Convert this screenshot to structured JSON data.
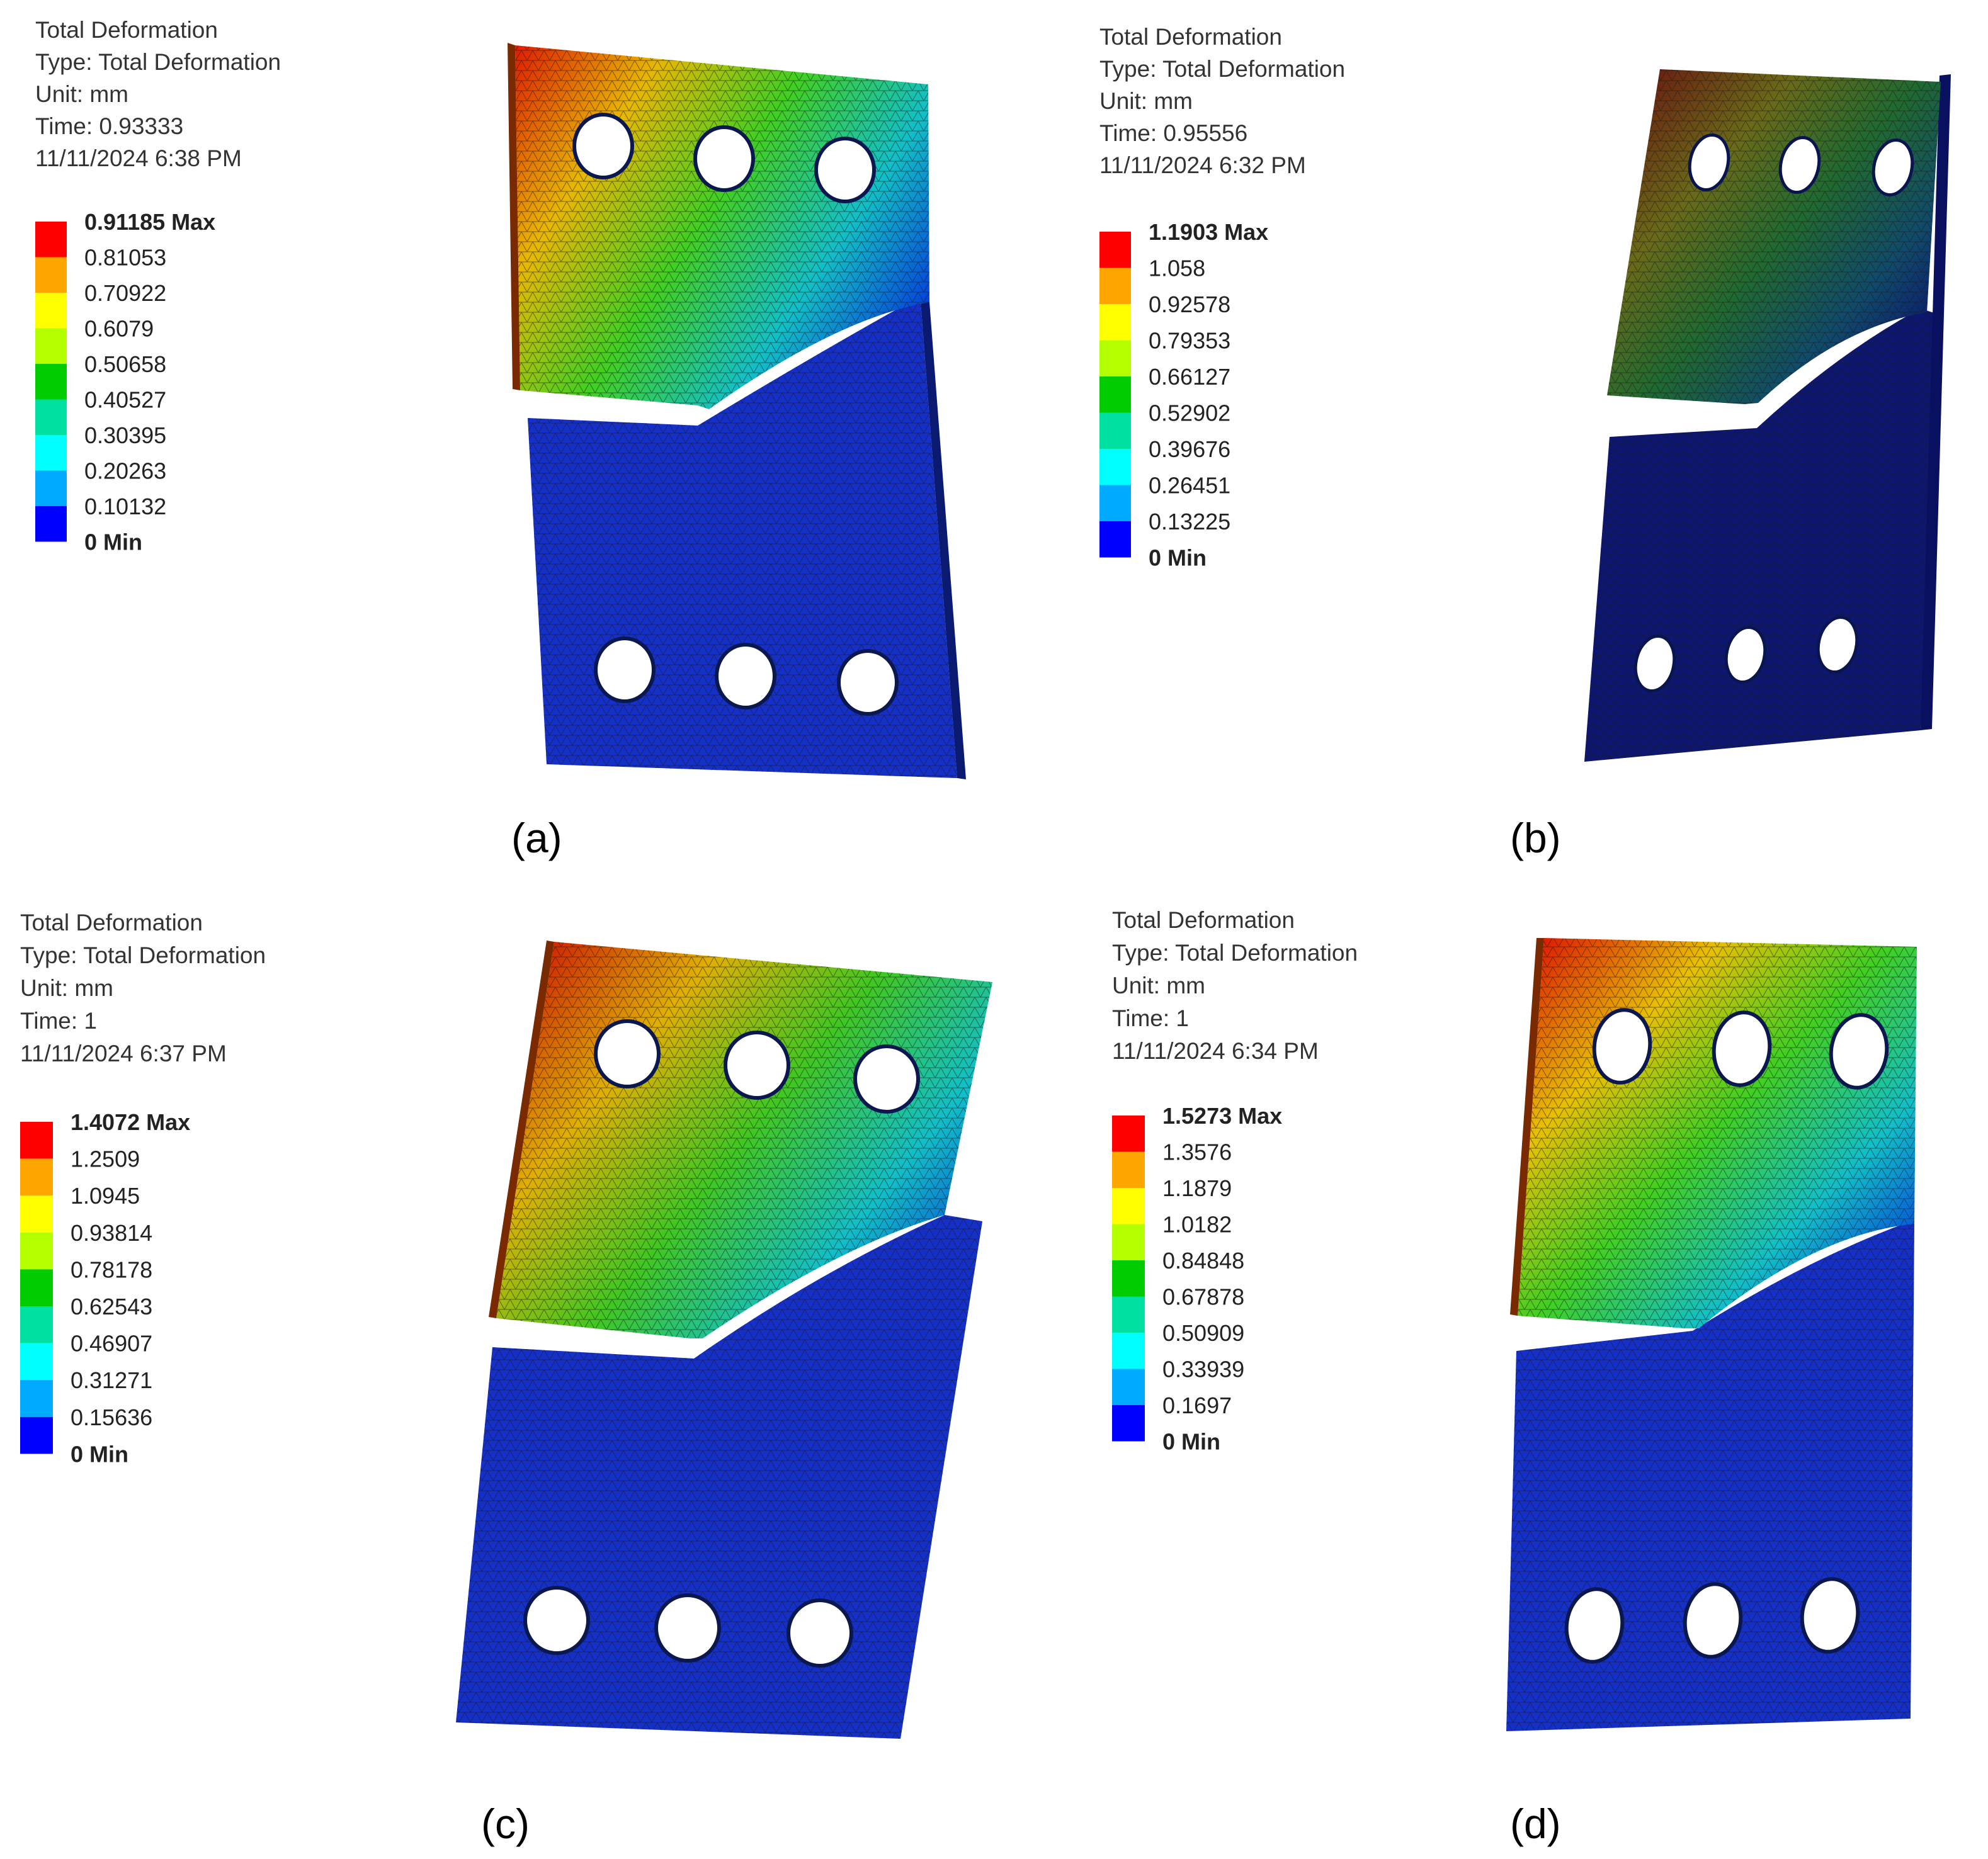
{
  "colors": {
    "legend": [
      "#ff0000",
      "#ffa500",
      "#ffff00",
      "#b3ff00",
      "#00cc00",
      "#00e0a0",
      "#00ffff",
      "#00aaff",
      "#0000ff"
    ],
    "mesh_line": "#1a1a1a"
  },
  "panels": [
    {
      "id": "a",
      "label": "(a)",
      "title": "Total Deformation",
      "type_line": "Type: Total Deformation",
      "unit_line": "Unit: mm",
      "time_line": "Time: 0.93333",
      "date_line": "11/11/2024 6:38 PM",
      "legend_labels": [
        "0.91185 Max",
        "0.81053",
        "0.70922",
        "0.6079",
        "0.50658",
        "0.40527",
        "0.30395",
        "0.20263",
        "0.10132",
        "0 Min"
      ],
      "dark_shading": false
    },
    {
      "id": "b",
      "label": "(b)",
      "title": "Total Deformation",
      "type_line": "Type: Total Deformation",
      "unit_line": "Unit: mm",
      "time_line": "Time: 0.95556",
      "date_line": "11/11/2024 6:32 PM",
      "legend_labels": [
        "1.1903 Max",
        "1.058",
        "0.92578",
        "0.79353",
        "0.66127",
        "0.52902",
        "0.39676",
        "0.26451",
        "0.13225",
        "0 Min"
      ],
      "dark_shading": true
    },
    {
      "id": "c",
      "label": "(c)",
      "title": "Total Deformation",
      "type_line": "Type: Total Deformation",
      "unit_line": "Unit: mm",
      "time_line": "Time: 1",
      "date_line": "11/11/2024 6:37 PM",
      "legend_labels": [
        "1.4072 Max",
        "1.2509",
        "1.0945",
        "0.93814",
        "0.78178",
        "0.62543",
        "0.46907",
        "0.31271",
        "0.15636",
        "0 Min"
      ],
      "dark_shading": false
    },
    {
      "id": "d",
      "label": "(d)",
      "title": "Total Deformation",
      "type_line": "Type: Total Deformation",
      "unit_line": "Unit: mm",
      "time_line": "Time: 1",
      "date_line": "11/11/2024 6:34 PM",
      "legend_labels": [
        "1.5273 Max",
        "1.3576",
        "1.1879",
        "1.0182",
        "0.84848",
        "0.67878",
        "0.50909",
        "0.33939",
        "0.1697",
        "0 Min"
      ],
      "dark_shading": false
    }
  ]
}
